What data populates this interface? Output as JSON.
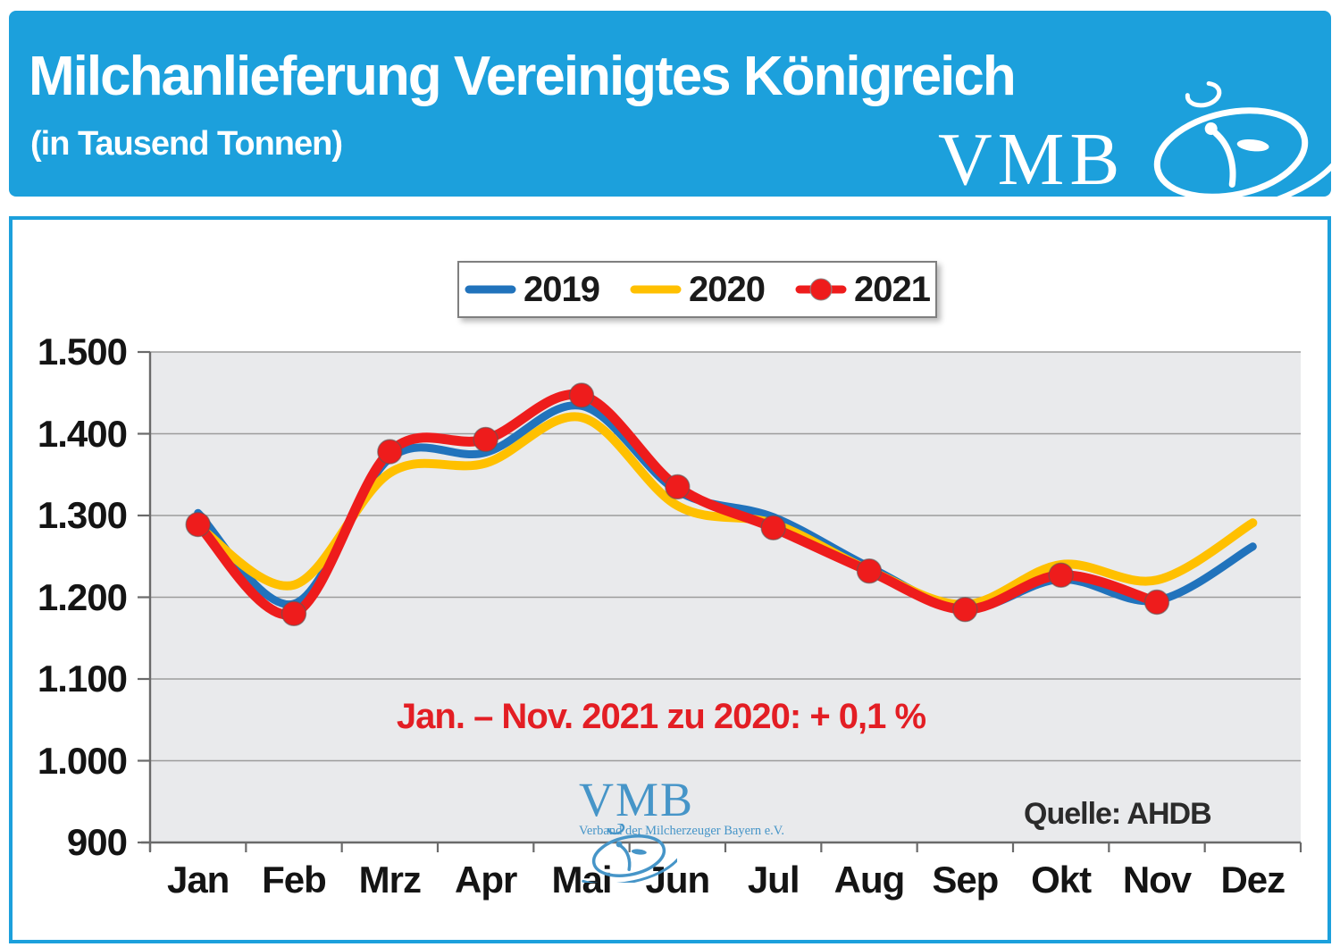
{
  "header": {
    "title": "Milchanlieferung Vereinigtes Königreich",
    "subtitle": "(in Tausend Tonnen)",
    "logo_text": "VMB",
    "bg_color": "#1CA0DC"
  },
  "legend": {
    "items": [
      {
        "label": "2019",
        "color": "#2173BC",
        "marker": false
      },
      {
        "label": "2020",
        "color": "#FFC000",
        "marker": false
      },
      {
        "label": "2021",
        "color": "#EE1C1C",
        "marker": true
      }
    ]
  },
  "annotation": {
    "text": "Jan. – Nov. 2021 zu 2020: + 0,1 %",
    "color": "#E31E24"
  },
  "source": {
    "text": "Quelle: AHDB"
  },
  "watermark": {
    "logo_text": "VMB",
    "caption": "Verband der Milcherzeuger Bayern e.V."
  },
  "chart_data": {
    "type": "line",
    "title": "Milchanlieferung Vereinigtes Königreich (in Tausend Tonnen)",
    "categories": [
      "Jan",
      "Feb",
      "Mrz",
      "Apr",
      "Mai",
      "Jun",
      "Jul",
      "Aug",
      "Sep",
      "Okt",
      "Nov",
      "Dez"
    ],
    "series": [
      {
        "name": "2019",
        "color": "#2173BC",
        "width": 9,
        "marker": false,
        "values": [
          1303,
          1192,
          1370,
          1377,
          1434,
          1330,
          1298,
          1237,
          1186,
          1222,
          1196,
          1262
        ]
      },
      {
        "name": "2020",
        "color": "#FFC000",
        "width": 10,
        "marker": false,
        "values": [
          1287,
          1215,
          1352,
          1364,
          1420,
          1312,
          1290,
          1233,
          1191,
          1240,
          1221,
          1291
        ]
      },
      {
        "name": "2021",
        "color": "#EE1C1C",
        "width": 11,
        "marker": true,
        "values": [
          1289,
          1180,
          1378,
          1393,
          1447,
          1335,
          1285,
          1232,
          1185,
          1227,
          1194,
          null
        ]
      }
    ],
    "ylim": [
      900,
      1500
    ],
    "ytick_values": [
      1500,
      1400,
      1300,
      1200,
      1100,
      1000,
      900
    ],
    "ytick_labels": [
      "1.500",
      "1.400",
      "1.300",
      "1.200",
      "1.100",
      "1.000",
      "900"
    ],
    "grid": true,
    "legend_position": "top",
    "smooth": true,
    "plot_bg": "#E9EAEC",
    "grid_color": "#9C9C9C",
    "axis_color": "#6A6A6A"
  }
}
